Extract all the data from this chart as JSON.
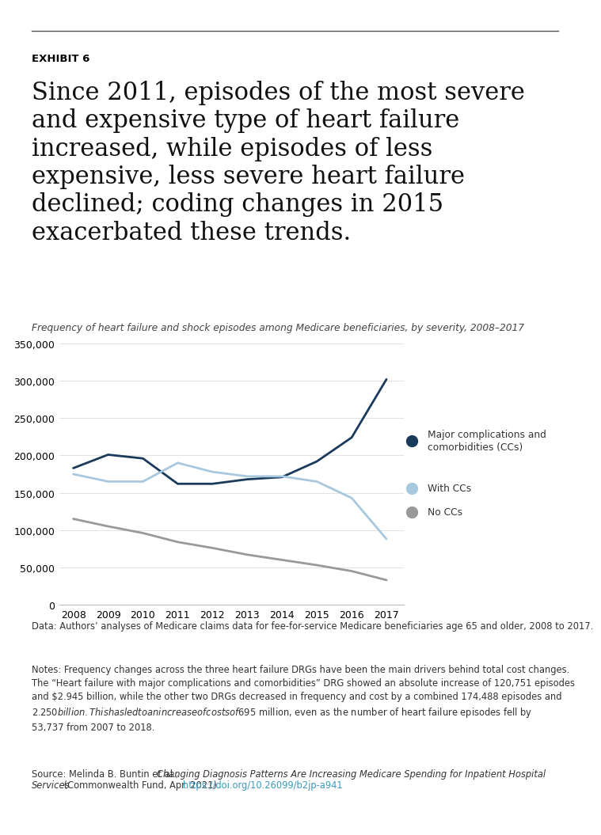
{
  "years": [
    2008,
    2009,
    2010,
    2011,
    2012,
    2013,
    2014,
    2015,
    2016,
    2017
  ],
  "major_cc": [
    183000,
    201000,
    196000,
    162000,
    162000,
    168000,
    171000,
    192000,
    224000,
    302000
  ],
  "with_cc": [
    175000,
    165000,
    165000,
    190000,
    178000,
    172000,
    172000,
    165000,
    143000,
    88000
  ],
  "no_cc": [
    115000,
    105000,
    96000,
    84000,
    76000,
    67000,
    60000,
    53000,
    45000,
    33000
  ],
  "color_major": "#1a3a5c",
  "color_with_cc": "#a8c8e0",
  "color_no_cc": "#999999",
  "ylim": [
    0,
    350000
  ],
  "yticks": [
    0,
    50000,
    100000,
    150000,
    200000,
    250000,
    300000,
    350000
  ],
  "exhibit_label": "EXHIBIT 6",
  "title_line1": "Since 2011, episodes of the most severe",
  "title_line2": "and expensive type of heart failure",
  "title_line3": "increased, while episodes of less",
  "title_line4": "expensive, less severe heart failure",
  "title_line5": "declined; coding changes in 2015",
  "title_line6": "exacerbated these trends.",
  "subtitle": "Frequency of heart failure and shock episodes among Medicare beneficiaries, by severity, 2008–2017",
  "legend_label1": "Major complications and\ncomorbidities (CCs)",
  "legend_label2": "With CCs",
  "legend_label3": "No CCs",
  "data_note": "Data: Authors’ analyses of Medicare claims data for fee-for-service Medicare beneficiaries age 65 and older, 2008 to 2017.",
  "notes_line1": "Notes: Frequency changes across the three heart failure DRGs have been the main drivers behind total cost changes.",
  "notes_line2": "The “Heart failure with major complications and comorbidities” DRG showed an absolute increase of 120,751 episodes",
  "notes_line3": "and $2.945 billion, while the other two DRGs decreased in frequency and cost by a combined 174,488 episodes and",
  "notes_line4": "$2.250 billion. This has led to an increase of costs of $695 million, even as the number of heart failure episodes fell by",
  "notes_line5": "53,737 from 2007 to 2018.",
  "source_plain1": "Source: Melinda B. Buntin et al., ",
  "source_italic1": "Changing Diagnosis Patterns Are Increasing Medicare Spending for Inpatient Hospital",
  "source_italic2": "Services",
  "source_plain2": " (Commonwealth Fund, Apr. 2021). ",
  "source_url": "https://doi.org/10.26099/b2jp-a941",
  "url_color": "#3a9abd",
  "text_color": "#222222",
  "note_color": "#333333",
  "background_color": "#ffffff",
  "top_line_color": "#555555"
}
